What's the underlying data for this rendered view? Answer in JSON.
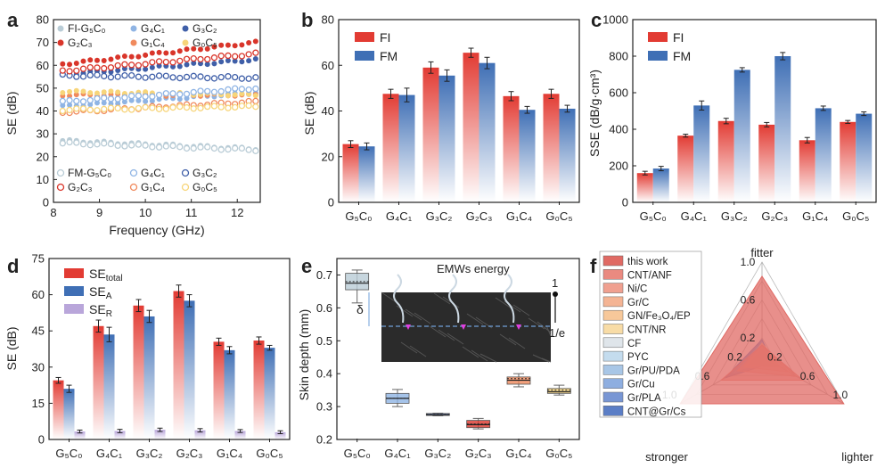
{
  "panel_letters": [
    "a",
    "b",
    "c",
    "d",
    "e",
    "f"
  ],
  "chart_data": [
    {
      "id": "a",
      "type": "scatter",
      "xlabel": "Frequency (GHz)",
      "ylabel": "SE (dB)",
      "xlim": [
        8.2,
        12.4
      ],
      "ylim": [
        0,
        80
      ],
      "xticks": [
        8,
        9,
        10,
        11,
        12
      ],
      "yticks": [
        0,
        10,
        20,
        30,
        40,
        50,
        60,
        70,
        80
      ],
      "legend_top": [
        "FI-G₅C₀",
        "G₄C₁",
        "G₃C₂",
        "G₂C₃",
        "G₁C₄",
        "G₀C₅"
      ],
      "legend_bottom": [
        "FM-G₅C₀",
        "G₄C₁",
        "G₃C₂",
        "G₂C₃",
        "G₁C₄",
        "G₀C₅"
      ],
      "series": [
        {
          "name": "FI-G₅C₀",
          "group": "FI",
          "color": "#b9ccd6",
          "start": 27,
          "end": 23.5
        },
        {
          "name": "G₄C₁",
          "group": "FI",
          "color": "#8fb4e4",
          "start": 42,
          "end": 48
        },
        {
          "name": "G₃C₂",
          "group": "FI",
          "color": "#3f5fa8",
          "start": 56,
          "end": 62.5
        },
        {
          "name": "G₂C₃",
          "group": "FI",
          "color": "#d9352a",
          "start": 60.5,
          "end": 70
        },
        {
          "name": "G₁C₄",
          "group": "FI",
          "color": "#f08a5d",
          "start": 47,
          "end": 47
        },
        {
          "name": "G₀C₅",
          "group": "FI",
          "color": "#f7d57a",
          "start": 48.5,
          "end": 47
        },
        {
          "name": "FM-G₅C₀",
          "group": "FM",
          "color": "#b9ccd6",
          "start": 26,
          "end": 23
        },
        {
          "name": "G₄C₁",
          "group": "FM",
          "color": "#8fb4e4",
          "start": 44,
          "end": 50
        },
        {
          "name": "G₃C₂",
          "group": "FM",
          "color": "#3f5fa8",
          "start": 55.5,
          "end": 54.5
        },
        {
          "name": "G₂C₃",
          "group": "FM",
          "color": "#d9352a",
          "start": 57.5,
          "end": 65
        },
        {
          "name": "G₁C₄",
          "group": "FM",
          "color": "#f08a5d",
          "start": 39.5,
          "end": 44
        },
        {
          "name": "G₀C₅",
          "group": "FM",
          "color": "#f7d57a",
          "start": 40.5,
          "end": 42
        }
      ]
    },
    {
      "id": "b",
      "type": "bar",
      "ylabel": "SE (dB)",
      "ylim": [
        0,
        80
      ],
      "yticks": [
        0,
        20,
        40,
        60,
        80
      ],
      "categories": [
        "G₅C₀",
        "G₄C₁",
        "G₃C₂",
        "G₂C₃",
        "G₁C₄",
        "G₀C₅"
      ],
      "series": [
        {
          "name": "FI",
          "color": "#e23b33",
          "values": [
            25.5,
            47.5,
            59,
            65.5,
            46.5,
            47.5
          ],
          "errors": [
            1.5,
            2,
            2.5,
            2,
            2,
            2
          ]
        },
        {
          "name": "FM",
          "color": "#3f6fb5",
          "values": [
            24.5,
            47,
            55.5,
            61,
            40.5,
            41
          ],
          "errors": [
            1.5,
            3,
            2.5,
            2.5,
            1.5,
            1.5
          ]
        }
      ]
    },
    {
      "id": "c",
      "type": "bar",
      "ylabel": "SSE (dB/g·cm³)",
      "ylim": [
        0,
        1000
      ],
      "yticks": [
        0,
        200,
        400,
        600,
        800,
        1000
      ],
      "categories": [
        "G₅C₀",
        "G₄C₁",
        "G₃C₂",
        "G₂C₃",
        "G₁C₄",
        "G₀C₅"
      ],
      "series": [
        {
          "name": "FI",
          "color": "#e23b33",
          "values": [
            160,
            365,
            445,
            425,
            340,
            440
          ],
          "errors": [
            10,
            8,
            15,
            12,
            15,
            8
          ]
        },
        {
          "name": "FM",
          "color": "#3f6fb5",
          "values": [
            185,
            530,
            725,
            800,
            515,
            485
          ],
          "errors": [
            12,
            25,
            12,
            20,
            12,
            10
          ]
        }
      ]
    },
    {
      "id": "d",
      "type": "bar",
      "ylabel": "SE (dB)",
      "ylim": [
        0,
        75
      ],
      "yticks": [
        0,
        15,
        30,
        45,
        60,
        75
      ],
      "categories": [
        "G₅C₀",
        "G₄C₁",
        "G₃C₂",
        "G₂C₃",
        "G₁C₄",
        "G₀C₅"
      ],
      "series": [
        {
          "name": "SE",
          "sub": "total",
          "color": "#e23b33",
          "values": [
            24.5,
            47,
            55.5,
            61.5,
            40.5,
            41
          ],
          "errors": [
            1.2,
            2.5,
            2.5,
            2.5,
            1.5,
            1.5
          ]
        },
        {
          "name": "SE",
          "sub": "A",
          "color": "#3f6fb5",
          "values": [
            21,
            43.5,
            51,
            57.5,
            37,
            38
          ],
          "errors": [
            1.5,
            3,
            2.5,
            2.5,
            1.5,
            1
          ]
        },
        {
          "name": "SE",
          "sub": "R",
          "color": "#b9a6da",
          "values": [
            3.3,
            3.5,
            4,
            3.8,
            3.5,
            3
          ],
          "errors": [
            0.6,
            0.7,
            0.7,
            0.7,
            0.6,
            0.6
          ]
        }
      ]
    },
    {
      "id": "e",
      "type": "box",
      "ylabel": "Skin depth (mm)",
      "ylim": [
        0.2,
        0.75
      ],
      "yticks": [
        0.2,
        0.3,
        0.4,
        0.5,
        0.6,
        0.7
      ],
      "categories": [
        "G₅C₀",
        "G₄C₁",
        "G₃C₂",
        "G₂C₃",
        "G₁C₄",
        "G₀C₅"
      ],
      "boxes": [
        {
          "min": 0.615,
          "q1": 0.655,
          "median": 0.675,
          "mean": 0.68,
          "q3": 0.705,
          "max": 0.715,
          "color": "#b9ccd6"
        },
        {
          "min": 0.3,
          "q1": 0.31,
          "median": 0.325,
          "mean": 0.325,
          "q3": 0.34,
          "max": 0.352,
          "color": "#8fb4e4"
        },
        {
          "min": 0.272,
          "q1": 0.273,
          "median": 0.275,
          "mean": 0.276,
          "q3": 0.279,
          "max": 0.28,
          "color": "#3f5fa8"
        },
        {
          "min": 0.232,
          "q1": 0.236,
          "median": 0.245,
          "mean": 0.247,
          "q3": 0.258,
          "max": 0.264,
          "color": "#d9352a"
        },
        {
          "min": 0.36,
          "q1": 0.368,
          "median": 0.38,
          "mean": 0.385,
          "q3": 0.39,
          "max": 0.4,
          "color": "#f08a5d"
        },
        {
          "min": 0.335,
          "q1": 0.34,
          "median": 0.345,
          "mean": 0.35,
          "q3": 0.355,
          "max": 0.365,
          "color": "#f7d57a"
        }
      ],
      "inset": {
        "label_energy": "EMWs energy",
        "label_delta": "δ",
        "label_one": "1",
        "label_e": "1/e"
      }
    },
    {
      "id": "f",
      "type": "radar",
      "axes": [
        "fitter",
        "lighter",
        "stronger"
      ],
      "tick_labels": [
        "0.2",
        "0.6",
        "1.0"
      ],
      "legend_entries": [
        "this work",
        "CNT/ANF",
        "Ni/C",
        "Gr/C",
        "GN/Fe₃O₄/EP",
        "CNT/NR",
        "CF",
        "PYC",
        "Gr/PU/PDA",
        "Gr/Cu",
        "Gr/PLA",
        "CNT@Gr/Cs"
      ],
      "series": [
        {
          "name": "this work",
          "color": "#e06a64",
          "values": [
            0.85,
            1.0,
            1.0
          ]
        },
        {
          "name": "CNT/ANF",
          "color": "#ea8a80",
          "values": [
            0.12,
            0.5,
            0.5
          ]
        },
        {
          "name": "Ni/C",
          "color": "#f0a090",
          "values": [
            0.12,
            0.42,
            0.3
          ]
        },
        {
          "name": "Gr/C",
          "color": "#f4b494",
          "values": [
            0.14,
            0.32,
            0.22
          ]
        },
        {
          "name": "GN/Fe₃O₄/EP",
          "color": "#f7c89a",
          "values": [
            0.12,
            0.22,
            0.2
          ]
        },
        {
          "name": "CNT/NR",
          "color": "#f8dca6",
          "values": [
            0.1,
            0.18,
            0.18
          ]
        },
        {
          "name": "CF",
          "color": "#dfe5ea",
          "values": [
            0.11,
            0.1,
            0.2
          ]
        },
        {
          "name": "PYC",
          "color": "#c4dcee",
          "values": [
            0.12,
            0.1,
            0.22
          ]
        },
        {
          "name": "Gr/PU/PDA",
          "color": "#a8c6e6",
          "values": [
            0.14,
            0.12,
            0.28
          ]
        },
        {
          "name": "Gr/Cu",
          "color": "#8eaee0",
          "values": [
            0.15,
            0.12,
            0.34
          ]
        },
        {
          "name": "Gr/PLA",
          "color": "#7896d4",
          "values": [
            0.16,
            0.11,
            0.4
          ]
        },
        {
          "name": "CNT@Gr/Cs",
          "color": "#5b7ec6",
          "values": [
            0.18,
            0.13,
            0.45
          ]
        }
      ]
    }
  ]
}
